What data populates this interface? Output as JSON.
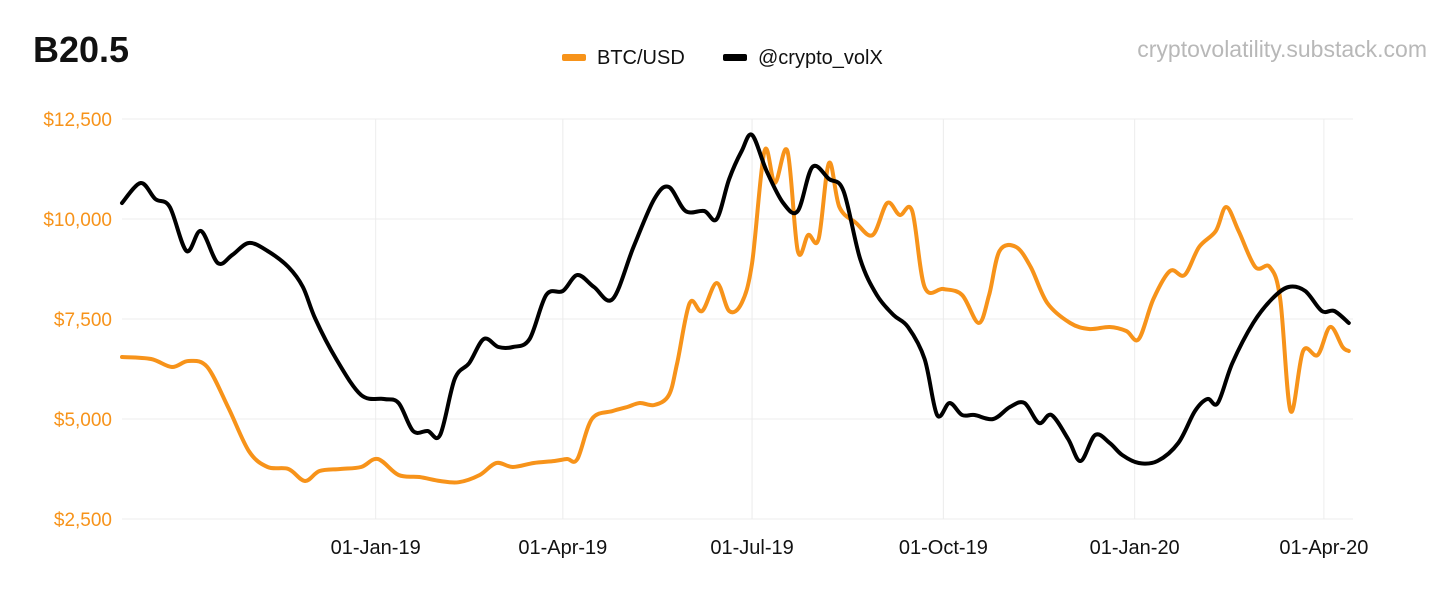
{
  "chart_data": {
    "type": "line",
    "title": "B20.5",
    "watermark": "cryptovolatility.substack.com",
    "legend_position": "top-center",
    "grid": true,
    "x_start": "2018-09-01",
    "x_end": "2020-04-15",
    "x_ticks": [
      {
        "date": "2019-01-01",
        "label": "01-Jan-19"
      },
      {
        "date": "2019-04-01",
        "label": "01-Apr-19"
      },
      {
        "date": "2019-07-01",
        "label": "01-Jul-19"
      },
      {
        "date": "2019-10-01",
        "label": "01-Oct-19"
      },
      {
        "date": "2020-01-01",
        "label": "01-Jan-20"
      },
      {
        "date": "2020-04-01",
        "label": "01-Apr-20"
      }
    ],
    "y_range": [
      2500,
      12500
    ],
    "y_ticks": [
      {
        "value": 2500,
        "label": "$2,500"
      },
      {
        "value": 5000,
        "label": "$5,000"
      },
      {
        "value": 7500,
        "label": "$7,500"
      },
      {
        "value": 10000,
        "label": "$10,000"
      },
      {
        "value": 12500,
        "label": "$12,500"
      }
    ],
    "series": [
      {
        "name": "BTC/USD",
        "color": "#f7931a",
        "points": [
          [
            "2018-09-01",
            6550
          ],
          [
            "2018-09-15",
            6500
          ],
          [
            "2018-09-25",
            6300
          ],
          [
            "2018-10-03",
            6450
          ],
          [
            "2018-10-12",
            6300
          ],
          [
            "2018-10-22",
            5300
          ],
          [
            "2018-11-01",
            4200
          ],
          [
            "2018-11-10",
            3800
          ],
          [
            "2018-11-20",
            3750
          ],
          [
            "2018-11-28",
            3450
          ],
          [
            "2018-12-05",
            3700
          ],
          [
            "2018-12-15",
            3750
          ],
          [
            "2018-12-25",
            3800
          ],
          [
            "2019-01-02",
            4000
          ],
          [
            "2019-01-12",
            3600
          ],
          [
            "2019-01-22",
            3550
          ],
          [
            "2019-02-01",
            3450
          ],
          [
            "2019-02-10",
            3420
          ],
          [
            "2019-02-20",
            3600
          ],
          [
            "2019-02-28",
            3900
          ],
          [
            "2019-03-08",
            3800
          ],
          [
            "2019-03-18",
            3900
          ],
          [
            "2019-03-28",
            3950
          ],
          [
            "2019-04-03",
            4000
          ],
          [
            "2019-04-08",
            4000
          ],
          [
            "2019-04-15",
            5000
          ],
          [
            "2019-04-25",
            5200
          ],
          [
            "2019-05-02",
            5300
          ],
          [
            "2019-05-08",
            5400
          ],
          [
            "2019-05-15",
            5350
          ],
          [
            "2019-05-22",
            5600
          ],
          [
            "2019-05-26",
            6400
          ],
          [
            "2019-06-01",
            7900
          ],
          [
            "2019-06-07",
            7700
          ],
          [
            "2019-06-14",
            8400
          ],
          [
            "2019-06-20",
            7700
          ],
          [
            "2019-06-26",
            7900
          ],
          [
            "2019-07-01",
            8900
          ],
          [
            "2019-07-07",
            11700
          ],
          [
            "2019-07-12",
            10900
          ],
          [
            "2019-07-18",
            11700
          ],
          [
            "2019-07-23",
            9200
          ],
          [
            "2019-07-28",
            9600
          ],
          [
            "2019-08-02",
            9500
          ],
          [
            "2019-08-07",
            11400
          ],
          [
            "2019-08-12",
            10300
          ],
          [
            "2019-08-20",
            9900
          ],
          [
            "2019-08-28",
            9600
          ],
          [
            "2019-09-04",
            10400
          ],
          [
            "2019-09-10",
            10100
          ],
          [
            "2019-09-16",
            10200
          ],
          [
            "2019-09-22",
            8300
          ],
          [
            "2019-10-01",
            8250
          ],
          [
            "2019-10-10",
            8100
          ],
          [
            "2019-10-18",
            7400
          ],
          [
            "2019-10-23",
            8100
          ],
          [
            "2019-10-28",
            9200
          ],
          [
            "2019-11-05",
            9300
          ],
          [
            "2019-11-12",
            8800
          ],
          [
            "2019-11-20",
            7900
          ],
          [
            "2019-12-01",
            7400
          ],
          [
            "2019-12-10",
            7250
          ],
          [
            "2019-12-20",
            7300
          ],
          [
            "2019-12-28",
            7200
          ],
          [
            "2020-01-03",
            7000
          ],
          [
            "2020-01-10",
            8000
          ],
          [
            "2020-01-18",
            8700
          ],
          [
            "2020-01-25",
            8600
          ],
          [
            "2020-02-01",
            9300
          ],
          [
            "2020-02-09",
            9700
          ],
          [
            "2020-02-14",
            10300
          ],
          [
            "2020-02-20",
            9700
          ],
          [
            "2020-02-28",
            8800
          ],
          [
            "2020-03-06",
            8800
          ],
          [
            "2020-03-11",
            8000
          ],
          [
            "2020-03-16",
            5200
          ],
          [
            "2020-03-22",
            6700
          ],
          [
            "2020-03-29",
            6600
          ],
          [
            "2020-04-04",
            7300
          ],
          [
            "2020-04-10",
            6800
          ],
          [
            "2020-04-13",
            6700
          ]
        ]
      },
      {
        "name": "@crypto_volX",
        "color": "#000000",
        "points": [
          [
            "2018-09-01",
            10400
          ],
          [
            "2018-09-10",
            10900
          ],
          [
            "2018-09-17",
            10500
          ],
          [
            "2018-09-24",
            10300
          ],
          [
            "2018-10-02",
            9200
          ],
          [
            "2018-10-09",
            9700
          ],
          [
            "2018-10-17",
            8900
          ],
          [
            "2018-10-24",
            9100
          ],
          [
            "2018-11-01",
            9400
          ],
          [
            "2018-11-10",
            9200
          ],
          [
            "2018-11-20",
            8800
          ],
          [
            "2018-11-27",
            8300
          ],
          [
            "2018-12-03",
            7500
          ],
          [
            "2018-12-13",
            6500
          ],
          [
            "2018-12-25",
            5600
          ],
          [
            "2019-01-05",
            5500
          ],
          [
            "2019-01-12",
            5400
          ],
          [
            "2019-01-19",
            4700
          ],
          [
            "2019-01-26",
            4700
          ],
          [
            "2019-02-01",
            4600
          ],
          [
            "2019-02-08",
            6000
          ],
          [
            "2019-02-15",
            6400
          ],
          [
            "2019-02-22",
            7000
          ],
          [
            "2019-03-01",
            6800
          ],
          [
            "2019-03-08",
            6800
          ],
          [
            "2019-03-16",
            7000
          ],
          [
            "2019-03-24",
            8100
          ],
          [
            "2019-04-01",
            8200
          ],
          [
            "2019-04-08",
            8600
          ],
          [
            "2019-04-16",
            8300
          ],
          [
            "2019-04-25",
            8000
          ],
          [
            "2019-05-05",
            9300
          ],
          [
            "2019-05-15",
            10500
          ],
          [
            "2019-05-22",
            10800
          ],
          [
            "2019-05-30",
            10200
          ],
          [
            "2019-06-08",
            10200
          ],
          [
            "2019-06-14",
            10000
          ],
          [
            "2019-06-20",
            11000
          ],
          [
            "2019-06-26",
            11700
          ],
          [
            "2019-07-01",
            12100
          ],
          [
            "2019-07-08",
            11200
          ],
          [
            "2019-07-16",
            10400
          ],
          [
            "2019-07-23",
            10200
          ],
          [
            "2019-07-30",
            11300
          ],
          [
            "2019-08-07",
            11000
          ],
          [
            "2019-08-14",
            10700
          ],
          [
            "2019-08-22",
            9000
          ],
          [
            "2019-08-30",
            8100
          ],
          [
            "2019-09-07",
            7600
          ],
          [
            "2019-09-14",
            7300
          ],
          [
            "2019-09-22",
            6500
          ],
          [
            "2019-09-28",
            5100
          ],
          [
            "2019-10-04",
            5400
          ],
          [
            "2019-10-10",
            5100
          ],
          [
            "2019-10-16",
            5100
          ],
          [
            "2019-10-25",
            5000
          ],
          [
            "2019-11-02",
            5300
          ],
          [
            "2019-11-09",
            5400
          ],
          [
            "2019-11-16",
            4900
          ],
          [
            "2019-11-22",
            5100
          ],
          [
            "2019-11-30",
            4500
          ],
          [
            "2019-12-06",
            3950
          ],
          [
            "2019-12-13",
            4600
          ],
          [
            "2019-12-20",
            4400
          ],
          [
            "2019-12-26",
            4100
          ],
          [
            "2020-01-03",
            3900
          ],
          [
            "2020-01-12",
            3950
          ],
          [
            "2020-01-22",
            4400
          ],
          [
            "2020-01-30",
            5200
          ],
          [
            "2020-02-05",
            5500
          ],
          [
            "2020-02-10",
            5400
          ],
          [
            "2020-02-17",
            6400
          ],
          [
            "2020-02-27",
            7400
          ],
          [
            "2020-03-07",
            8000
          ],
          [
            "2020-03-15",
            8300
          ],
          [
            "2020-03-23",
            8200
          ],
          [
            "2020-03-31",
            7700
          ],
          [
            "2020-04-06",
            7700
          ],
          [
            "2020-04-13",
            7400
          ]
        ]
      }
    ]
  }
}
